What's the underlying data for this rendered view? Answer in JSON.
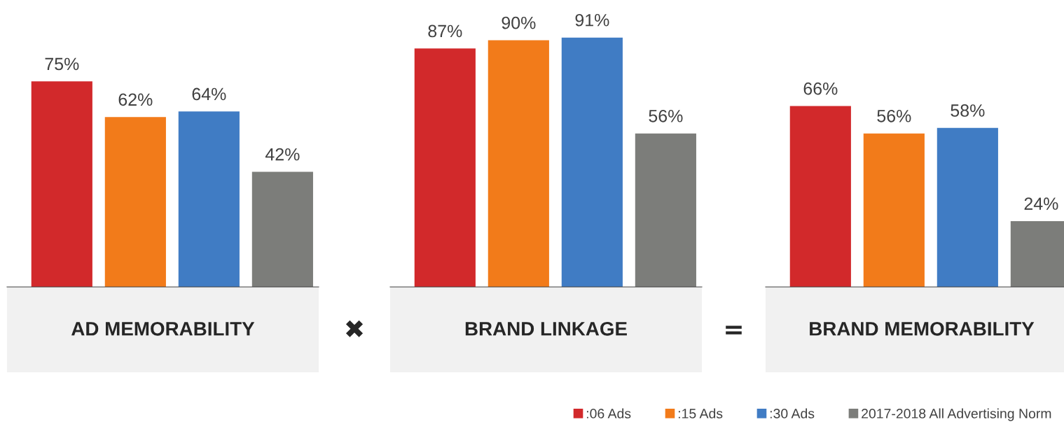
{
  "chart_data": [
    {
      "type": "bar",
      "xlabel": "AD MEMORABILITY",
      "categories": [
        null
      ],
      "annotations": [
        "✖"
      ],
      "series": [
        {
          "color": "#d2292b",
          "values": [
            75
          ],
          "value_labels": [
            "75%"
          ]
        },
        {
          "color": "#f27b1a",
          "values": [
            62
          ],
          "value_labels": [
            "62%"
          ]
        },
        {
          "color": "#407cc4",
          "values": [
            64
          ],
          "value_labels": [
            "64%"
          ]
        },
        {
          "color": "#7c7d7a",
          "values": [
            42
          ],
          "value_labels": [
            "42%"
          ]
        }
      ]
    },
    {
      "type": "bar",
      "xlabel": "BRAND LINKAGE",
      "categories": [
        null
      ],
      "annotations": [
        "="
      ],
      "series": [
        {
          "color": "#d2292b",
          "values": [
            87
          ],
          "value_labels": [
            "87%"
          ]
        },
        {
          "color": "#f27b1a",
          "values": [
            90
          ],
          "value_labels": [
            "90%"
          ]
        },
        {
          "color": "#407cc4",
          "values": [
            91
          ],
          "value_labels": [
            "91%"
          ]
        },
        {
          "color": "#7c7d7a",
          "values": [
            56
          ],
          "value_labels": [
            "56%"
          ]
        }
      ]
    },
    {
      "type": "bar",
      "xlabel": "BRAND MEMORABILITY",
      "categories": [
        null
      ],
      "legend": "bottom left",
      "series": [
        {
          "name": ":06 Ads",
          "color": "#d2292b",
          "values": [
            66
          ],
          "value_labels": [
            "66%"
          ]
        },
        {
          "name": ":15 Ads",
          "color": "#f27b1a",
          "values": [
            56
          ],
          "value_labels": [
            "56%"
          ]
        },
        {
          "name": ":30 Ads",
          "color": "#407cc4",
          "values": [
            58
          ],
          "value_labels": [
            "58%"
          ]
        },
        {
          "name": "2017-2018 All Advertising Norm",
          "color": "#7c7d7a",
          "values": [
            24
          ],
          "value_labels": [
            "24%"
          ]
        }
      ]
    }
  ]
}
